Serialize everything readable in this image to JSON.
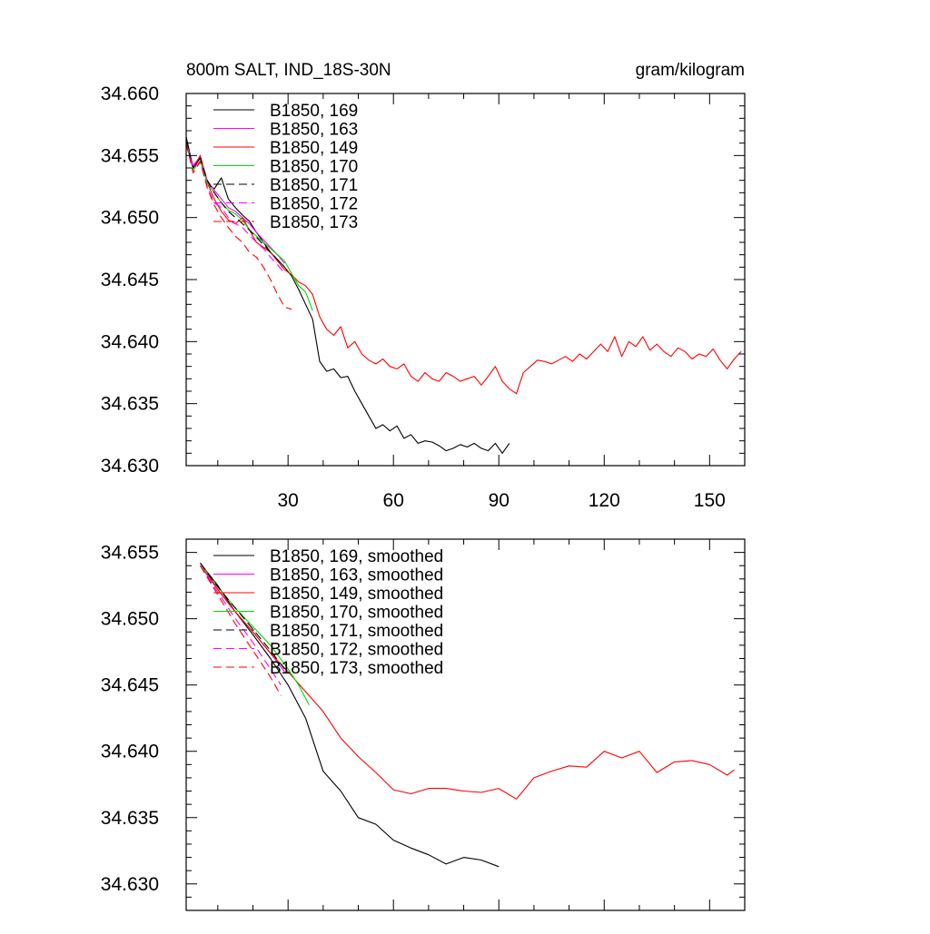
{
  "chart_data": [
    {
      "type": "line",
      "title_left": "800m SALT, IND_18S-30N",
      "title_right": "gram/kilogram",
      "xlim": [
        1,
        160
      ],
      "ylim": [
        34.63,
        34.66
      ],
      "x_ticks": [
        30,
        60,
        90,
        120,
        150
      ],
      "x_tick_labels": [
        "30",
        "60",
        "90",
        "120",
        "150"
      ],
      "y_ticks": [
        34.63,
        34.635,
        34.64,
        34.645,
        34.65,
        34.655,
        34.66
      ],
      "y_tick_labels": [
        "34.630",
        "34.635",
        "34.640",
        "34.645",
        "34.650",
        "34.655",
        "34.660"
      ],
      "legend_position": "top-left",
      "series": [
        {
          "name": "B1850, 169",
          "color": "#000000",
          "dash": "solid",
          "x": [
            1,
            3,
            5,
            7,
            9,
            11,
            13,
            15,
            17,
            19,
            21,
            23,
            25,
            27,
            29,
            31,
            33,
            35,
            37,
            39,
            41,
            43,
            45,
            47,
            49,
            51,
            53,
            55,
            57,
            59,
            61,
            63,
            65,
            67,
            69,
            71,
            73,
            75,
            77,
            79,
            81,
            83,
            85,
            87,
            89,
            91,
            93
          ],
          "y": [
            34.6565,
            34.654,
            34.6548,
            34.6528,
            34.6523,
            34.6532,
            34.6515,
            34.6508,
            34.6502,
            34.6497,
            34.6488,
            34.648,
            34.6472,
            34.6466,
            34.646,
            34.6453,
            34.6442,
            34.643,
            34.6418,
            34.6384,
            34.6376,
            34.6378,
            34.6371,
            34.6372,
            34.636,
            34.635,
            34.634,
            34.633,
            34.6333,
            34.6328,
            34.6332,
            34.6322,
            34.6325,
            34.6318,
            34.632,
            34.6319,
            34.6316,
            34.6312,
            34.6314,
            34.6317,
            34.6315,
            34.6318,
            34.6314,
            34.6312,
            34.6318,
            34.631,
            34.6318
          ]
        },
        {
          "name": "B1850, 163",
          "color": "#ff00ff",
          "dash": "solid",
          "x": [
            1,
            3,
            5,
            7,
            9,
            11,
            13,
            15,
            17,
            19,
            21,
            23,
            25,
            27,
            29
          ],
          "y": [
            34.656,
            34.6542,
            34.6549,
            34.653,
            34.6522,
            34.6515,
            34.6508,
            34.6505,
            34.65,
            34.6495,
            34.6488,
            34.6482,
            34.6476,
            34.647,
            34.6463
          ]
        },
        {
          "name": "B1850, 149",
          "color": "#ff0000",
          "dash": "solid",
          "x": [
            1,
            3,
            5,
            7,
            9,
            11,
            13,
            15,
            17,
            19,
            21,
            23,
            25,
            27,
            29,
            31,
            33,
            35,
            37,
            39,
            41,
            43,
            45,
            47,
            49,
            51,
            53,
            55,
            57,
            59,
            61,
            63,
            65,
            67,
            69,
            71,
            73,
            75,
            77,
            79,
            81,
            83,
            85,
            87,
            89,
            91,
            93,
            95,
            97,
            99,
            101,
            103,
            105,
            107,
            109,
            111,
            113,
            115,
            117,
            119,
            121,
            123,
            125,
            127,
            129,
            131,
            133,
            135,
            137,
            139,
            141,
            143,
            145,
            147,
            149,
            151,
            153,
            155,
            157,
            159
          ],
          "y": [
            34.656,
            34.654,
            34.655,
            34.6528,
            34.6515,
            34.6505,
            34.6498,
            34.6495,
            34.65,
            34.649,
            34.648,
            34.6476,
            34.6472,
            34.6465,
            34.6458,
            34.6454,
            34.6448,
            34.6445,
            34.6438,
            34.642,
            34.641,
            34.6405,
            34.6412,
            34.6395,
            34.64,
            34.639,
            34.6385,
            34.6382,
            34.6386,
            34.638,
            34.6378,
            34.6382,
            34.6372,
            34.6368,
            34.6375,
            34.637,
            34.6368,
            34.6375,
            34.6372,
            34.6368,
            34.637,
            34.6372,
            34.6365,
            34.6372,
            34.638,
            34.6368,
            34.6362,
            34.6358,
            34.6375,
            34.638,
            34.6385,
            34.6384,
            34.6382,
            34.6385,
            34.6388,
            34.6384,
            34.639,
            34.6386,
            34.6392,
            34.6398,
            34.6392,
            34.6404,
            34.6388,
            34.64,
            34.6396,
            34.6404,
            34.6393,
            34.6398,
            34.6392,
            34.6388,
            34.6395,
            34.6392,
            34.6386,
            34.639,
            34.6388,
            34.6394,
            34.6385,
            34.6378,
            34.6386,
            34.6392
          ]
        },
        {
          "name": "B1850, 170",
          "color": "#00dd00",
          "dash": "solid",
          "x": [
            1,
            3,
            5,
            7,
            9,
            11,
            13,
            15,
            17,
            19,
            21,
            23,
            25,
            27,
            29,
            31,
            33,
            35,
            37
          ],
          "y": [
            34.6562,
            34.6538,
            34.6546,
            34.6528,
            34.652,
            34.6512,
            34.6506,
            34.6503,
            34.6498,
            34.649,
            34.6485,
            34.648,
            34.6475,
            34.647,
            34.6465,
            34.6455,
            34.6445,
            34.644,
            34.6425
          ]
        },
        {
          "name": "B1850, 171",
          "color": "#000000",
          "dash": "dashed",
          "x": [
            1,
            3,
            5,
            7,
            9,
            11,
            13,
            15,
            17,
            19,
            21,
            23,
            25,
            27,
            29
          ],
          "y": [
            34.6562,
            34.654,
            34.6548,
            34.653,
            34.652,
            34.6512,
            34.6505,
            34.65,
            34.6495,
            34.649,
            34.6484,
            34.6478,
            34.6472,
            34.6466,
            34.646
          ]
        },
        {
          "name": "B1850, 172",
          "color": "#ff00ff",
          "dash": "dashed",
          "x": [
            1,
            3,
            5,
            7,
            9,
            11,
            13,
            15,
            17,
            19,
            21,
            23,
            25,
            27,
            29
          ],
          "y": [
            34.6558,
            34.654,
            34.6545,
            34.6525,
            34.6512,
            34.6508,
            34.65,
            34.6495,
            34.6492,
            34.6486,
            34.648,
            34.6475,
            34.6468,
            34.6462,
            34.6455
          ]
        },
        {
          "name": "B1850, 173",
          "color": "#ff0000",
          "dash": "dashed",
          "x": [
            1,
            3,
            5,
            7,
            9,
            11,
            13,
            15,
            17,
            19,
            21,
            23,
            25,
            27,
            29,
            31
          ],
          "y": [
            34.656,
            34.6536,
            34.6545,
            34.6524,
            34.651,
            34.65,
            34.6492,
            34.6485,
            34.648,
            34.6472,
            34.6468,
            34.646,
            34.645,
            34.6438,
            34.6428,
            34.6426
          ]
        }
      ]
    },
    {
      "type": "line",
      "xlim": [
        1,
        160
      ],
      "ylim": [
        34.628,
        34.656
      ],
      "x_ticks": [
        30,
        60,
        90,
        120,
        150
      ],
      "y_ticks": [
        34.63,
        34.635,
        34.64,
        34.645,
        34.65,
        34.655
      ],
      "y_tick_labels": [
        "34.630",
        "34.635",
        "34.640",
        "34.645",
        "34.650",
        "34.655"
      ],
      "legend_position": "top-left",
      "series": [
        {
          "name": "B1850, 169, smoothed",
          "color": "#000000",
          "dash": "solid",
          "x": [
            5,
            10,
            15,
            20,
            25,
            30,
            35,
            40,
            45,
            50,
            55,
            60,
            65,
            70,
            75,
            80,
            85,
            90
          ],
          "y": [
            34.6542,
            34.6525,
            34.6505,
            34.6488,
            34.647,
            34.645,
            34.6425,
            34.6385,
            34.637,
            34.635,
            34.6345,
            34.6333,
            34.6327,
            34.6322,
            34.6315,
            34.632,
            34.6318,
            34.6313
          ]
        },
        {
          "name": "B1850, 163, smoothed",
          "color": "#ff00ff",
          "dash": "solid",
          "x": [
            5,
            10,
            15,
            20,
            25,
            29
          ],
          "y": [
            34.654,
            34.6522,
            34.6505,
            34.649,
            34.6474,
            34.646
          ]
        },
        {
          "name": "B1850, 149, smoothed",
          "color": "#ff0000",
          "dash": "solid",
          "x": [
            5,
            10,
            15,
            20,
            25,
            30,
            35,
            40,
            45,
            50,
            55,
            60,
            65,
            70,
            75,
            80,
            85,
            90,
            95,
            100,
            105,
            110,
            115,
            120,
            125,
            130,
            135,
            140,
            145,
            150,
            155,
            157
          ],
          "y": [
            34.6542,
            34.6522,
            34.6505,
            34.649,
            34.6474,
            34.646,
            34.6445,
            34.643,
            34.641,
            34.6396,
            34.6384,
            34.6371,
            34.6368,
            34.6372,
            34.6372,
            34.637,
            34.6369,
            34.6372,
            34.6364,
            34.638,
            34.6385,
            34.6389,
            34.6388,
            34.64,
            34.6395,
            34.64,
            34.6384,
            34.6392,
            34.6393,
            34.639,
            34.6382,
            34.6386
          ]
        },
        {
          "name": "B1850, 170, smoothed",
          "color": "#00dd00",
          "dash": "solid",
          "x": [
            5,
            10,
            15,
            20,
            25,
            30,
            33,
            36
          ],
          "y": [
            34.6542,
            34.6524,
            34.6508,
            34.6494,
            34.648,
            34.6462,
            34.645,
            34.6435
          ]
        },
        {
          "name": "B1850, 171, smoothed",
          "color": "#000000",
          "dash": "dashed",
          "x": [
            5,
            10,
            15,
            20,
            25,
            29
          ],
          "y": [
            34.6542,
            34.6524,
            34.6508,
            34.6492,
            34.6476,
            34.6462
          ]
        },
        {
          "name": "B1850, 172, smoothed",
          "color": "#ff00ff",
          "dash": "dashed",
          "x": [
            5,
            10,
            15,
            20,
            25,
            28
          ],
          "y": [
            34.654,
            34.652,
            34.65,
            34.6482,
            34.6462,
            34.645
          ]
        },
        {
          "name": "B1850, 173, smoothed",
          "color": "#ff0000",
          "dash": "dashed",
          "x": [
            5,
            10,
            15,
            20,
            25,
            28
          ],
          "y": [
            34.654,
            34.6518,
            34.6496,
            34.6476,
            34.6456,
            34.6442
          ]
        }
      ]
    }
  ]
}
